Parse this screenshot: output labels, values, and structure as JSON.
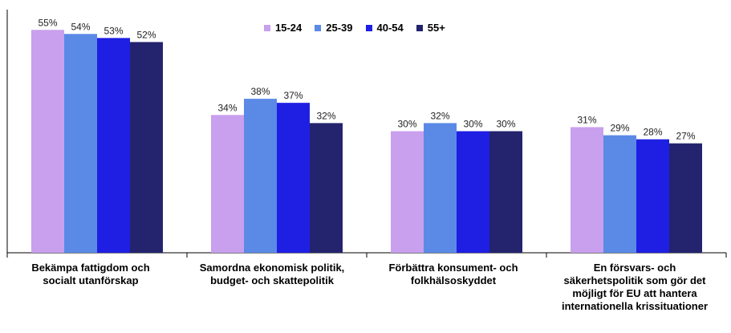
{
  "colors": {
    "15-24": "#c8a0ee",
    "25-39": "#5b8ae6",
    "40-54": "#1f1fe3",
    "55+": "#23236e"
  },
  "chart_data": {
    "type": "bar",
    "categories": [
      "Bekämpa fattigdom och\nsocialt utanförskap",
      "Samordna ekonomisk politik,\nbudget- och skattepolitik",
      "Förbättra konsument- och\nfolkhälsoskyddet",
      "En försvars- och\nsäkerhetspolitik som gör det\nmöjligt för EU att hantera\ninternationella krissituationer"
    ],
    "series": [
      {
        "name": "15-24",
        "values": [
          55,
          34,
          30,
          31
        ]
      },
      {
        "name": "25-39",
        "values": [
          54,
          38,
          32,
          29
        ]
      },
      {
        "name": "40-54",
        "values": [
          53,
          37,
          30,
          28
        ]
      },
      {
        "name": "55+",
        "values": [
          52,
          32,
          30,
          27
        ]
      }
    ],
    "value_suffix": "%",
    "ylim": [
      0,
      60
    ],
    "legend_position": "top-center",
    "grid": false
  }
}
